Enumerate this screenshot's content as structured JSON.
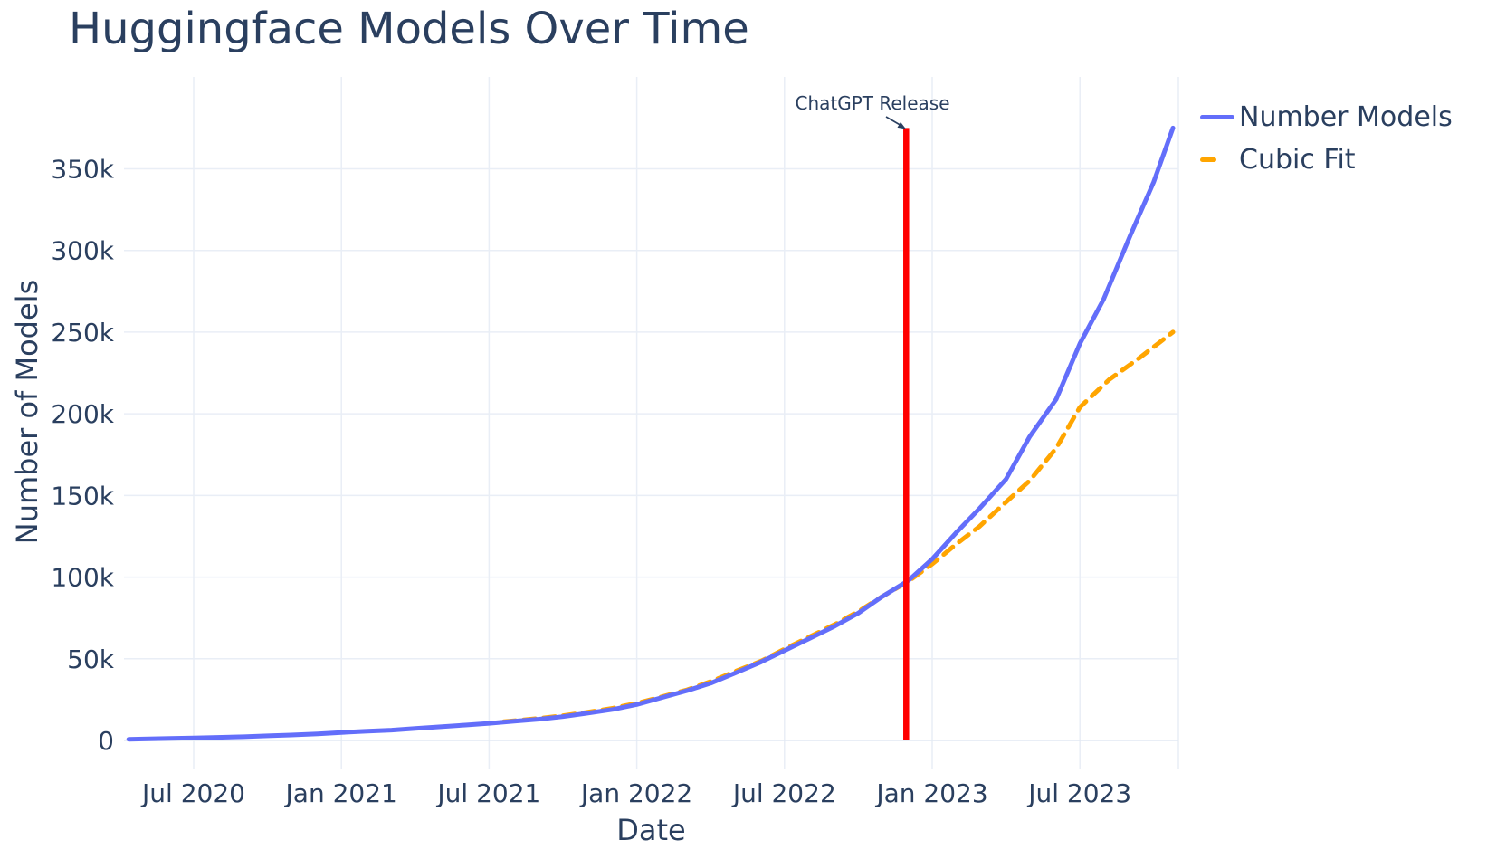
{
  "chart_data": {
    "type": "line",
    "title": "Huggingface Models Over Time",
    "xlabel": "Date",
    "ylabel": "Number of Models",
    "values_unit": "thousands of models",
    "x_range_years": [
      2020.26,
      2023.83
    ],
    "y_range_k": [
      -15,
      400
    ],
    "grid": true,
    "legend_position": "top-right",
    "x_ticks": [
      {
        "x": 2020.5,
        "label": "Jul 2020"
      },
      {
        "x": 2021.0,
        "label": "Jan 2021"
      },
      {
        "x": 2021.5,
        "label": "Jul 2021"
      },
      {
        "x": 2022.0,
        "label": "Jan 2022"
      },
      {
        "x": 2022.5,
        "label": "Jul 2022"
      },
      {
        "x": 2023.0,
        "label": "Jan 2023"
      },
      {
        "x": 2023.5,
        "label": "Jul 2023"
      }
    ],
    "y_ticks": [
      {
        "v": 0,
        "label": "0"
      },
      {
        "v": 50,
        "label": "50k"
      },
      {
        "v": 100,
        "label": "100k"
      },
      {
        "v": 150,
        "label": "150k"
      },
      {
        "v": 200,
        "label": "200k"
      },
      {
        "v": 250,
        "label": "250k"
      },
      {
        "v": 300,
        "label": "300k"
      },
      {
        "v": 350,
        "label": "350k"
      }
    ],
    "series": [
      {
        "name": "Number Models",
        "color": "#636efa",
        "style": "solid",
        "points": [
          [
            2020.28,
            0.7
          ],
          [
            2020.33,
            0.9
          ],
          [
            2020.42,
            1.2
          ],
          [
            2020.5,
            1.5
          ],
          [
            2020.58,
            1.9
          ],
          [
            2020.67,
            2.3
          ],
          [
            2020.75,
            2.8
          ],
          [
            2020.83,
            3.3
          ],
          [
            2020.92,
            4.0
          ],
          [
            2021.0,
            4.9
          ],
          [
            2021.08,
            5.6
          ],
          [
            2021.17,
            6.3
          ],
          [
            2021.25,
            7.3
          ],
          [
            2021.33,
            8.3
          ],
          [
            2021.42,
            9.4
          ],
          [
            2021.5,
            10.5
          ],
          [
            2021.58,
            11.7
          ],
          [
            2021.67,
            13.0
          ],
          [
            2021.75,
            14.6
          ],
          [
            2021.83,
            16.6
          ],
          [
            2021.92,
            19.0
          ],
          [
            2022.0,
            22.0
          ],
          [
            2022.08,
            26.0
          ],
          [
            2022.17,
            30.5
          ],
          [
            2022.25,
            35.0
          ],
          [
            2022.33,
            41.0
          ],
          [
            2022.42,
            48.0
          ],
          [
            2022.5,
            55.0
          ],
          [
            2022.58,
            62.0
          ],
          [
            2022.67,
            70.0
          ],
          [
            2022.75,
            78.0
          ],
          [
            2022.83,
            88.0
          ],
          [
            2022.92,
            98.0
          ],
          [
            2023.0,
            111.0
          ],
          [
            2023.08,
            127.0
          ],
          [
            2023.16,
            142.0
          ],
          [
            2023.25,
            160.0
          ],
          [
            2023.33,
            186.0
          ],
          [
            2023.42,
            209.0
          ],
          [
            2023.5,
            243.0
          ],
          [
            2023.58,
            270.0
          ],
          [
            2023.67,
            309.0
          ],
          [
            2023.75,
            342.0
          ],
          [
            2023.815,
            375.0
          ]
        ]
      },
      {
        "name": "Cubic Fit",
        "color": "#ffa500",
        "style": "dashed",
        "points": [
          [
            2021.55,
            11.5
          ],
          [
            2021.67,
            13.5
          ],
          [
            2021.75,
            15.2
          ],
          [
            2021.83,
            17.2
          ],
          [
            2021.92,
            19.8
          ],
          [
            2022.0,
            22.8
          ],
          [
            2022.08,
            26.5
          ],
          [
            2022.17,
            31.0
          ],
          [
            2022.25,
            36.0
          ],
          [
            2022.33,
            42.0
          ],
          [
            2022.42,
            48.5
          ],
          [
            2022.5,
            56.0
          ],
          [
            2022.58,
            63.0
          ],
          [
            2022.67,
            71.0
          ],
          [
            2022.75,
            79.0
          ],
          [
            2022.83,
            88.0
          ],
          [
            2022.92,
            97.5
          ],
          [
            2023.0,
            108.0
          ],
          [
            2023.08,
            120.0
          ],
          [
            2023.16,
            131.0
          ],
          [
            2023.25,
            146.0
          ],
          [
            2023.33,
            159.0
          ],
          [
            2023.42,
            179.0
          ],
          [
            2023.5,
            204.0
          ],
          [
            2023.6,
            221.0
          ],
          [
            2023.7,
            234.0
          ],
          [
            2023.815,
            250.0
          ]
        ]
      }
    ],
    "vline": {
      "x": 2022.912,
      "color": "#ff0000",
      "y_from_k": 0,
      "y_to_k": 375,
      "annotation": "ChatGPT Release"
    }
  },
  "colors": {
    "text": "#2a3f5f",
    "grid": "#e9eef6",
    "zeroline": "#e2e9f3",
    "background": "#ffffff"
  }
}
